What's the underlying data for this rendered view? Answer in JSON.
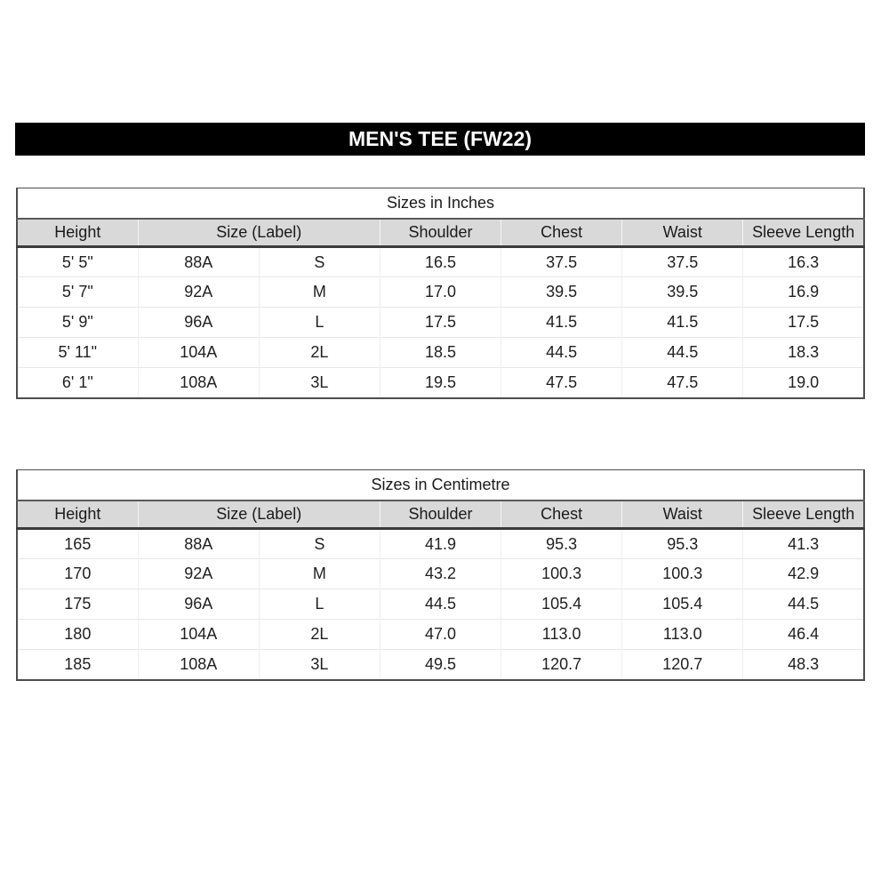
{
  "banner": {
    "title": "MEN'S TEE (FW22)"
  },
  "tables": [
    {
      "title": "Sizes in Inches",
      "headers": [
        "Height",
        "Size (Label)",
        "Shoulder",
        "Chest",
        "Waist",
        "Sleeve Length"
      ],
      "rows": [
        [
          "5' 5\"",
          "88A",
          "S",
          "16.5",
          "37.5",
          "37.5",
          "16.3"
        ],
        [
          "5' 7\"",
          "92A",
          "M",
          "17.0",
          "39.5",
          "39.5",
          "16.9"
        ],
        [
          "5' 9\"",
          "96A",
          "L",
          "17.5",
          "41.5",
          "41.5",
          "17.5"
        ],
        [
          "5' 11\"",
          "104A",
          "2L",
          "18.5",
          "44.5",
          "44.5",
          "18.3"
        ],
        [
          "6' 1\"",
          "108A",
          "3L",
          "19.5",
          "47.5",
          "47.5",
          "19.0"
        ]
      ]
    },
    {
      "title": "Sizes in Centimetre",
      "headers": [
        "Height",
        "Size (Label)",
        "Shoulder",
        "Chest",
        "Waist",
        "Sleeve Length"
      ],
      "rows": [
        [
          "165",
          "88A",
          "S",
          "41.9",
          "95.3",
          "95.3",
          "41.3"
        ],
        [
          "170",
          "92A",
          "M",
          "43.2",
          "100.3",
          "100.3",
          "42.9"
        ],
        [
          "175",
          "96A",
          "L",
          "44.5",
          "105.4",
          "105.4",
          "44.5"
        ],
        [
          "180",
          "104A",
          "2L",
          "47.0",
          "113.0",
          "113.0",
          "46.4"
        ],
        [
          "185",
          "108A",
          "3L",
          "49.5",
          "120.7",
          "120.7",
          "48.3"
        ]
      ]
    }
  ]
}
